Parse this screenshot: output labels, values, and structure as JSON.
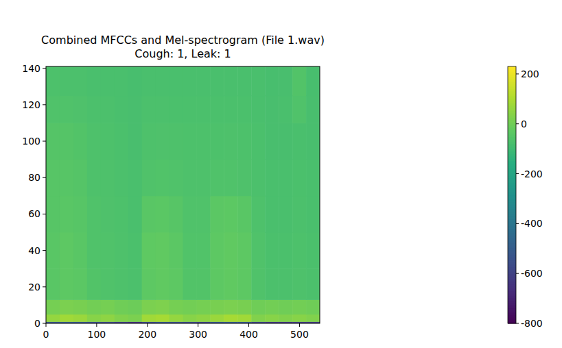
{
  "chart_data": {
    "type": "heatmap",
    "title": "Combined MFCCs and Mel-spectrogram (File 1.wav)",
    "subtitle": "Cough: 1, Leak: 1",
    "x_edges": [
      0,
      27,
      54,
      81,
      108,
      135,
      162,
      189,
      216,
      243,
      270,
      297,
      324,
      351,
      378,
      405,
      432,
      459,
      486,
      513,
      540
    ],
    "y_edges": [
      0,
      1,
      5,
      13,
      30,
      50,
      70,
      90,
      110,
      125,
      141
    ],
    "values": [
      [
        -520,
        -500,
        -510,
        -540,
        -560,
        -600,
        -650,
        -560,
        -520,
        -540,
        -560,
        -580,
        -520,
        -500,
        -510,
        -580,
        -620,
        -630,
        -610,
        -620
      ],
      [
        60,
        80,
        70,
        40,
        50,
        30,
        20,
        80,
        90,
        60,
        40,
        50,
        70,
        90,
        80,
        30,
        40,
        30,
        40,
        30
      ],
      [
        10,
        20,
        15,
        5,
        10,
        0,
        -5,
        20,
        25,
        10,
        5,
        10,
        15,
        20,
        15,
        0,
        5,
        0,
        5,
        0
      ],
      [
        -40,
        -30,
        -35,
        -55,
        -60,
        -65,
        -70,
        -30,
        -25,
        -30,
        -55,
        -55,
        -30,
        -25,
        -30,
        -60,
        -70,
        -70,
        -65,
        -70
      ],
      [
        -40,
        -30,
        -40,
        -60,
        -62,
        -66,
        -72,
        -28,
        -25,
        -35,
        -58,
        -58,
        -30,
        -25,
        -30,
        -62,
        -72,
        -72,
        -68,
        -72
      ],
      [
        -45,
        -40,
        -45,
        -62,
        -64,
        -68,
        -74,
        -40,
        -38,
        -45,
        -62,
        -62,
        -35,
        -32,
        -40,
        -66,
        -74,
        -74,
        -70,
        -74
      ],
      [
        -45,
        -45,
        -50,
        -65,
        -66,
        -70,
        -76,
        -60,
        -58,
        -62,
        -66,
        -66,
        -62,
        -60,
        -64,
        -70,
        -76,
        -76,
        -72,
        -76
      ],
      [
        -50,
        -50,
        -55,
        -66,
        -68,
        -72,
        -78,
        -66,
        -64,
        -66,
        -68,
        -68,
        -68,
        -66,
        -68,
        -72,
        -78,
        -78,
        -74,
        -78
      ],
      [
        -60,
        -62,
        -64,
        -70,
        -70,
        -74,
        -78,
        -70,
        -70,
        -72,
        -72,
        -72,
        -72,
        -72,
        -72,
        -74,
        -78,
        -76,
        -60,
        -78
      ],
      [
        -68,
        -70,
        -70,
        -74,
        -74,
        -76,
        -80,
        -74,
        -74,
        -76,
        -76,
        -76,
        -76,
        -76,
        -76,
        -76,
        -80,
        -78,
        -55,
        -80
      ]
    ],
    "xlim": [
      0,
      540
    ],
    "ylim": [
      0,
      141
    ],
    "xticks": [
      0,
      100,
      200,
      300,
      400,
      500
    ],
    "yticks": [
      0,
      20,
      40,
      60,
      80,
      100,
      120,
      140
    ],
    "colorbar_range": [
      -800,
      230
    ],
    "colorbar_ticks": [
      -800,
      -600,
      -400,
      -200,
      0,
      200
    ]
  }
}
